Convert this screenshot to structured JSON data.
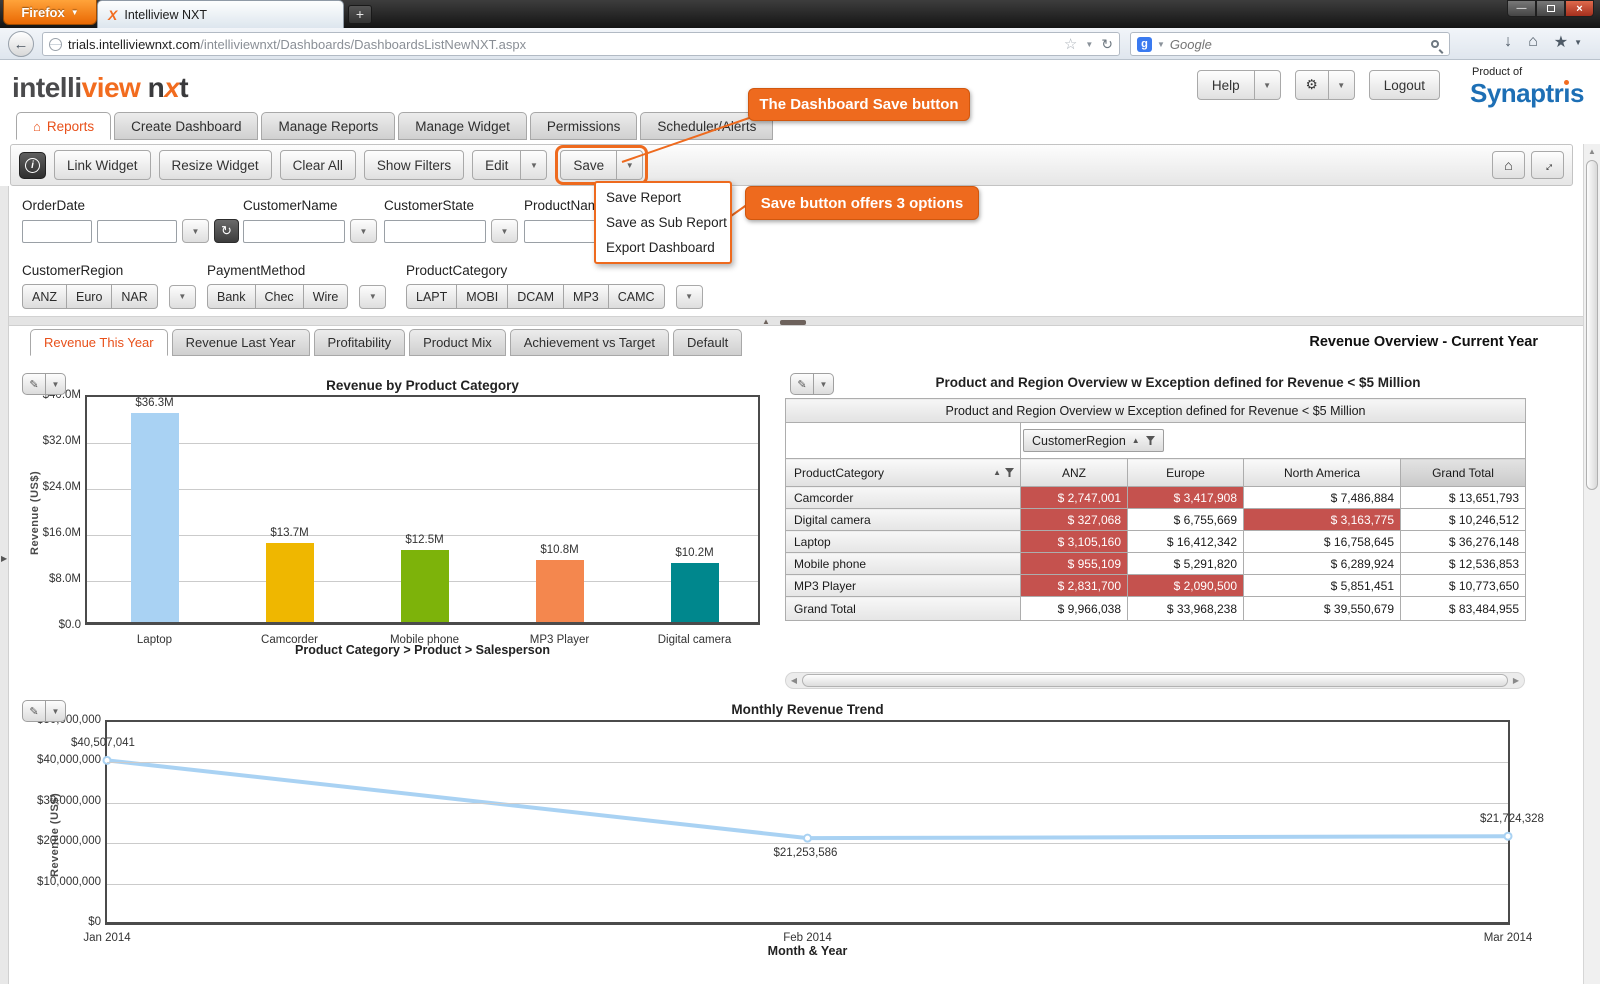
{
  "browser": {
    "firefox_button": "Firefox",
    "tab_title": "Intelliview NXT",
    "new_tab": "+",
    "url_domain": "trials.intelliviewnxt.com",
    "url_path": "/intelliviewnxt/Dashboards/DashboardsListNewNXT.aspx",
    "search_placeholder": "Google"
  },
  "header": {
    "logo_part1": "intelli",
    "logo_part2": "view",
    "logo_n": "n",
    "logo_x": "x",
    "logo_t": "t",
    "help_label": "Help",
    "logout_label": "Logout",
    "product_of": "Product of",
    "brand_pre": "Synaptr",
    "brand_i": "ı",
    "brand_post": "s"
  },
  "nav": {
    "tabs": [
      {
        "label": "Reports",
        "active": true
      },
      {
        "label": "Create Dashboard",
        "active": false
      },
      {
        "label": "Manage Reports",
        "active": false
      },
      {
        "label": "Manage Widget",
        "active": false
      },
      {
        "label": "Permissions",
        "active": false
      },
      {
        "label": "Scheduler/Alerts",
        "active": false
      }
    ]
  },
  "toolbar": {
    "buttons": [
      "Link Widget",
      "Resize Widget",
      "Clear All",
      "Show Filters"
    ],
    "edit_label": "Edit",
    "save_label": "Save"
  },
  "callouts": {
    "save_button": "The Dashboard Save button",
    "save_options": "Save button offers 3 options"
  },
  "save_menu": {
    "items": [
      "Save Report",
      "Save as Sub Report",
      "Export Dashboard"
    ]
  },
  "filters": {
    "row1": [
      {
        "label": "OrderDate"
      },
      {
        "label": "CustomerName"
      },
      {
        "label": "CustomerState"
      },
      {
        "label": "ProductName"
      }
    ],
    "row2": [
      {
        "label": "CustomerRegion",
        "options": [
          "ANZ",
          "Euro",
          "NAR"
        ]
      },
      {
        "label": "PaymentMethod",
        "options": [
          "Bank",
          "Chec",
          "Wire"
        ]
      },
      {
        "label": "ProductCategory",
        "options": [
          "LAPT",
          "MOBI",
          "DCAM",
          "MP3",
          "CAMC"
        ]
      }
    ]
  },
  "dashboard": {
    "tabs": [
      {
        "label": "Revenue This Year",
        "active": true
      },
      {
        "label": "Revenue Last Year",
        "active": false
      },
      {
        "label": "Profitability",
        "active": false
      },
      {
        "label": "Product Mix",
        "active": false
      },
      {
        "label": "Achievement vs Target",
        "active": false
      },
      {
        "label": "Default",
        "active": false
      }
    ],
    "view_title": "Revenue Overview - Current Year"
  },
  "chart_data": [
    {
      "id": "revenue-by-category",
      "type": "bar",
      "title": "Revenue by Product Category",
      "ylabel": "Revenue (US$)",
      "xlabel": "Product Category > Product > Salesperson",
      "categories": [
        "Laptop",
        "Camcorder",
        "Mobile phone",
        "MP3 Player",
        "Digital camera"
      ],
      "values": [
        36.3,
        13.7,
        12.5,
        10.8,
        10.2
      ],
      "value_labels": [
        "$36.3M",
        "$13.7M",
        "$12.5M",
        "$10.8M",
        "$10.2M"
      ],
      "bar_colors": [
        "#a9d2f3",
        "#efb700",
        "#7db30a",
        "#f4874e",
        "#00878d"
      ],
      "ylim": [
        0,
        40
      ],
      "yticks": [
        "$40.0M",
        "$32.0M",
        "$24.0M",
        "$16.0M",
        "$8.0M",
        "$0.0"
      ],
      "ytick_values": [
        40,
        32,
        24,
        16,
        8,
        0
      ],
      "grid": true,
      "legend": "none"
    },
    {
      "id": "product-region-pivot",
      "type": "table",
      "title": "Product and Region Overview w Exception defined for Revenue < $5 Million",
      "band_title": "Product and Region Overview w Exception defined for Revenue < $5 Million",
      "region_field": "CustomerRegion",
      "row_field": "ProductCategory",
      "columns": [
        "ANZ",
        "Europe",
        "North America",
        "Grand Total"
      ],
      "rows": [
        {
          "label": "Camcorder",
          "values": [
            "$ 2,747,001",
            "$ 3,417,908",
            "$ 7,486,884",
            "$ 13,651,793"
          ],
          "exceptions": [
            true,
            true,
            false,
            false
          ]
        },
        {
          "label": "Digital camera",
          "values": [
            "$ 327,068",
            "$ 6,755,669",
            "$ 3,163,775",
            "$ 10,246,512"
          ],
          "exceptions": [
            true,
            false,
            true,
            false
          ]
        },
        {
          "label": "Laptop",
          "values": [
            "$ 3,105,160",
            "$ 16,412,342",
            "$ 16,758,645",
            "$ 36,276,148"
          ],
          "exceptions": [
            true,
            false,
            false,
            false
          ]
        },
        {
          "label": "Mobile phone",
          "values": [
            "$ 955,109",
            "$ 5,291,820",
            "$ 6,289,924",
            "$ 12,536,853"
          ],
          "exceptions": [
            true,
            false,
            false,
            false
          ]
        },
        {
          "label": "MP3 Player",
          "values": [
            "$ 2,831,700",
            "$ 2,090,500",
            "$ 5,851,451",
            "$ 10,773,650"
          ],
          "exceptions": [
            true,
            true,
            false,
            false
          ]
        }
      ],
      "grand_total": {
        "label": "Grand Total",
        "values": [
          "$ 9,966,038",
          "$ 33,968,238",
          "$ 39,550,679",
          "$ 83,484,955"
        ]
      },
      "exception_color": "#c5524e"
    },
    {
      "id": "monthly-revenue-trend",
      "type": "line",
      "title": "Monthly Revenue Trend",
      "ylabel": "Revenue (US$)",
      "xlabel": "Month & Year",
      "x": [
        "Jan 2014",
        "Feb 2014",
        "Mar 2014"
      ],
      "values": [
        40507041,
        21253586,
        21724328
      ],
      "point_labels": [
        "$40,507,041",
        "$21,253,586",
        "$21,724,328"
      ],
      "ylim": [
        0,
        50000000
      ],
      "yticks": [
        "$50,000,000",
        "$40,000,000",
        "$30,000,000",
        "$20,000,000",
        "$10,000,000",
        "$0"
      ],
      "ytick_values": [
        50000000,
        40000000,
        30000000,
        20000000,
        10000000,
        0
      ],
      "line_color": "#a9d2f3",
      "grid": true,
      "legend": "none"
    }
  ],
  "colors": {
    "accent_orange": "#ee6a1e",
    "active_tab_text": "#e8501a",
    "exception_red": "#c5524e",
    "brand_blue": "#1d6fb5"
  }
}
